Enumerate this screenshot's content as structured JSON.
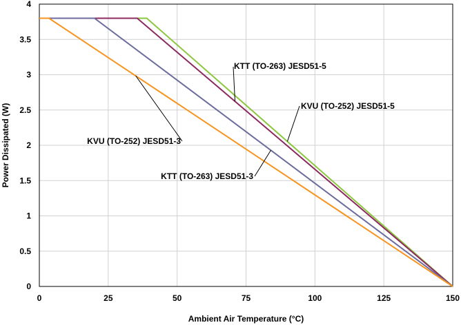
{
  "chart_data": {
    "type": "line",
    "title": "",
    "xlabel": "Ambient Air Temperature (°C)",
    "ylabel": "Power Dissipated (W)",
    "xlim": [
      0,
      150
    ],
    "ylim": [
      0,
      4
    ],
    "x_ticks": [
      "0",
      "25",
      "50",
      "75",
      "100",
      "125",
      "150"
    ],
    "y_ticks": [
      "0",
      "0.5",
      "1",
      "1.5",
      "2",
      "2.5",
      "3",
      "3.5",
      "4"
    ],
    "grid": true,
    "series": [
      {
        "name": "KVU (TO-252) JESD51-5",
        "color": "#8dc63f",
        "x": [
          0,
          39,
          150
        ],
        "y": [
          3.8,
          3.8,
          0
        ]
      },
      {
        "name": "KTT (TO-263) JESD51-5",
        "color": "#8b2a5e",
        "x": [
          0,
          35.5,
          150
        ],
        "y": [
          3.8,
          3.8,
          0
        ]
      },
      {
        "name": "KTT (TO-263) JESD51-3",
        "color": "#6b6b9e",
        "x": [
          0,
          20,
          150
        ],
        "y": [
          3.8,
          3.8,
          0
        ]
      },
      {
        "name": "KVU (TO-252) JESD51-3",
        "color": "#f7941d",
        "x": [
          0,
          3.5,
          150
        ],
        "y": [
          3.8,
          3.8,
          0
        ]
      }
    ],
    "annotations": [
      {
        "text": "KTT (TO-263) JESD51-5",
        "series": 1
      },
      {
        "text": "KVU (TO-252) JESD51-5",
        "series": 0
      },
      {
        "text": "KVU (TO-252) JESD51-3",
        "series": 3
      },
      {
        "text": "KTT (TO-263) JESD51-3",
        "series": 2
      }
    ]
  }
}
